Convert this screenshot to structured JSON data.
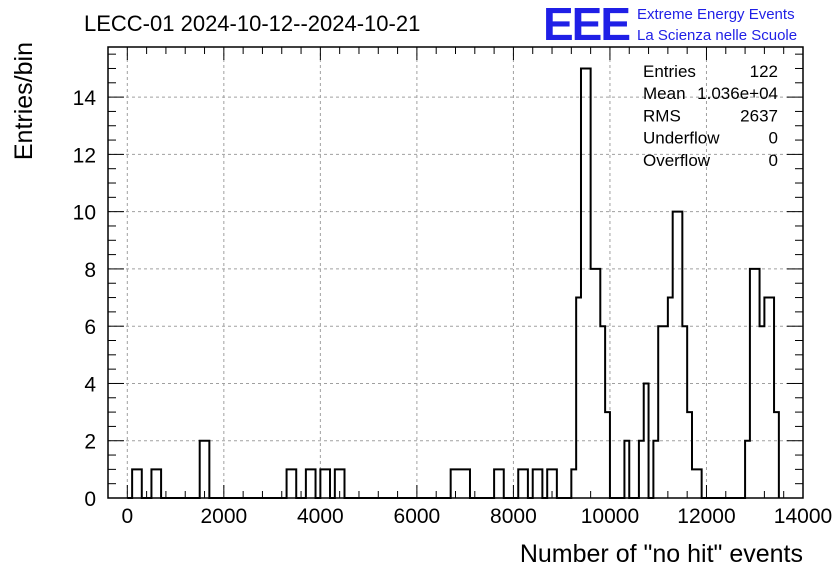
{
  "chart_data": {
    "type": "bar",
    "title": "LECC-01 2024-10-12--2024-10-21",
    "xlabel": "Number of \"no hit\" events",
    "ylabel": "Entries/bin",
    "xlim": [
      -400,
      14000
    ],
    "ylim": [
      0,
      15.75
    ],
    "bin_width": 200,
    "x_ticks": [
      "0",
      "2000",
      "4000",
      "6000",
      "8000",
      "10000",
      "12000",
      "14000"
    ],
    "y_ticks": [
      "0",
      "2",
      "4",
      "6",
      "8",
      "10",
      "12",
      "14"
    ],
    "grid": true,
    "bins": [
      {
        "x": 0,
        "y": 0
      },
      {
        "x": 100,
        "y": 1
      },
      {
        "x": 300,
        "y": 0
      },
      {
        "x": 500,
        "y": 1
      },
      {
        "x": 700,
        "y": 0
      },
      {
        "x": 1500,
        "y": 2
      },
      {
        "x": 1700,
        "y": 0
      },
      {
        "x": 3300,
        "y": 1
      },
      {
        "x": 3500,
        "y": 0
      },
      {
        "x": 3700,
        "y": 1
      },
      {
        "x": 3900,
        "y": 0
      },
      {
        "x": 4000,
        "y": 1
      },
      {
        "x": 4200,
        "y": 0
      },
      {
        "x": 4300,
        "y": 1
      },
      {
        "x": 4500,
        "y": 0
      },
      {
        "x": 6700,
        "y": 1
      },
      {
        "x": 7100,
        "y": 0
      },
      {
        "x": 7600,
        "y": 1
      },
      {
        "x": 7800,
        "y": 0
      },
      {
        "x": 8100,
        "y": 1
      },
      {
        "x": 8300,
        "y": 0
      },
      {
        "x": 8400,
        "y": 1
      },
      {
        "x": 8600,
        "y": 0
      },
      {
        "x": 8700,
        "y": 1
      },
      {
        "x": 8900,
        "y": 0
      },
      {
        "x": 9200,
        "y": 1
      },
      {
        "x": 9300,
        "y": 7
      },
      {
        "x": 9400,
        "y": 15
      },
      {
        "x": 9600,
        "y": 8
      },
      {
        "x": 9800,
        "y": 6
      },
      {
        "x": 9900,
        "y": 3
      },
      {
        "x": 10000,
        "y": 0
      },
      {
        "x": 10300,
        "y": 2
      },
      {
        "x": 10400,
        "y": 0
      },
      {
        "x": 10600,
        "y": 2
      },
      {
        "x": 10700,
        "y": 4
      },
      {
        "x": 10800,
        "y": 0
      },
      {
        "x": 10900,
        "y": 2
      },
      {
        "x": 11000,
        "y": 6
      },
      {
        "x": 11200,
        "y": 7
      },
      {
        "x": 11300,
        "y": 10
      },
      {
        "x": 11500,
        "y": 6
      },
      {
        "x": 11600,
        "y": 3
      },
      {
        "x": 11700,
        "y": 1
      },
      {
        "x": 11900,
        "y": 0
      },
      {
        "x": 12800,
        "y": 2
      },
      {
        "x": 12900,
        "y": 8
      },
      {
        "x": 13100,
        "y": 6
      },
      {
        "x": 13200,
        "y": 7
      },
      {
        "x": 13400,
        "y": 3
      },
      {
        "x": 13500,
        "y": 0
      }
    ]
  },
  "stats": [
    {
      "label": "Entries",
      "value": "122"
    },
    {
      "label": "Mean",
      "value": "1.036e+04"
    },
    {
      "label": "RMS",
      "value": "2637"
    },
    {
      "label": "Underflow",
      "value": "0"
    },
    {
      "label": "Overflow",
      "value": "0"
    }
  ],
  "logo": {
    "mark": "EEE",
    "line1": "Extreme Energy Events",
    "line2": "La Scienza nelle Scuole"
  },
  "colors": {
    "line": "#000000",
    "grid": "#a0a0a0",
    "logo": "#1f1fe6"
  }
}
